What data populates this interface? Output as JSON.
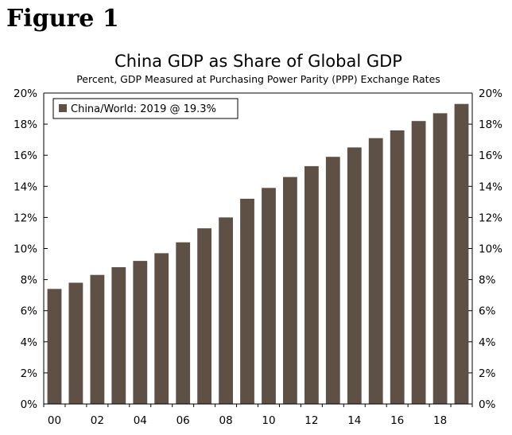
{
  "figure_label": "Figure 1",
  "colors": {
    "bar": "#5e5044",
    "axis": "#000000",
    "background": "#ffffff"
  },
  "chart_data": {
    "type": "bar",
    "title": "China GDP as Share of Global GDP",
    "subtitle": "Percent, GDP Measured at Purchasing Power Parity (PPP) Exchange Rates",
    "xlabel": "",
    "ylabel": "",
    "ylim": [
      0,
      20
    ],
    "y_ticks": [
      "0%",
      "2%",
      "4%",
      "6%",
      "8%",
      "10%",
      "12%",
      "14%",
      "16%",
      "18%",
      "20%"
    ],
    "x_tick_labels": [
      "00",
      "02",
      "04",
      "06",
      "08",
      "10",
      "12",
      "14",
      "16",
      "18"
    ],
    "categories": [
      "00",
      "01",
      "02",
      "03",
      "04",
      "05",
      "06",
      "07",
      "08",
      "09",
      "10",
      "11",
      "12",
      "13",
      "14",
      "15",
      "16",
      "17",
      "18",
      "19"
    ],
    "series": [
      {
        "name": "China/World: 2019 @ 19.3%",
        "values": [
          7.4,
          7.8,
          8.3,
          8.8,
          9.2,
          9.7,
          10.4,
          11.3,
          12.0,
          13.2,
          13.9,
          14.6,
          15.3,
          15.9,
          16.5,
          17.1,
          17.6,
          18.2,
          18.7,
          19.3
        ]
      }
    ],
    "legend": {
      "label": "China/World: 2019 @ 19.3%",
      "position": "top-left"
    }
  }
}
